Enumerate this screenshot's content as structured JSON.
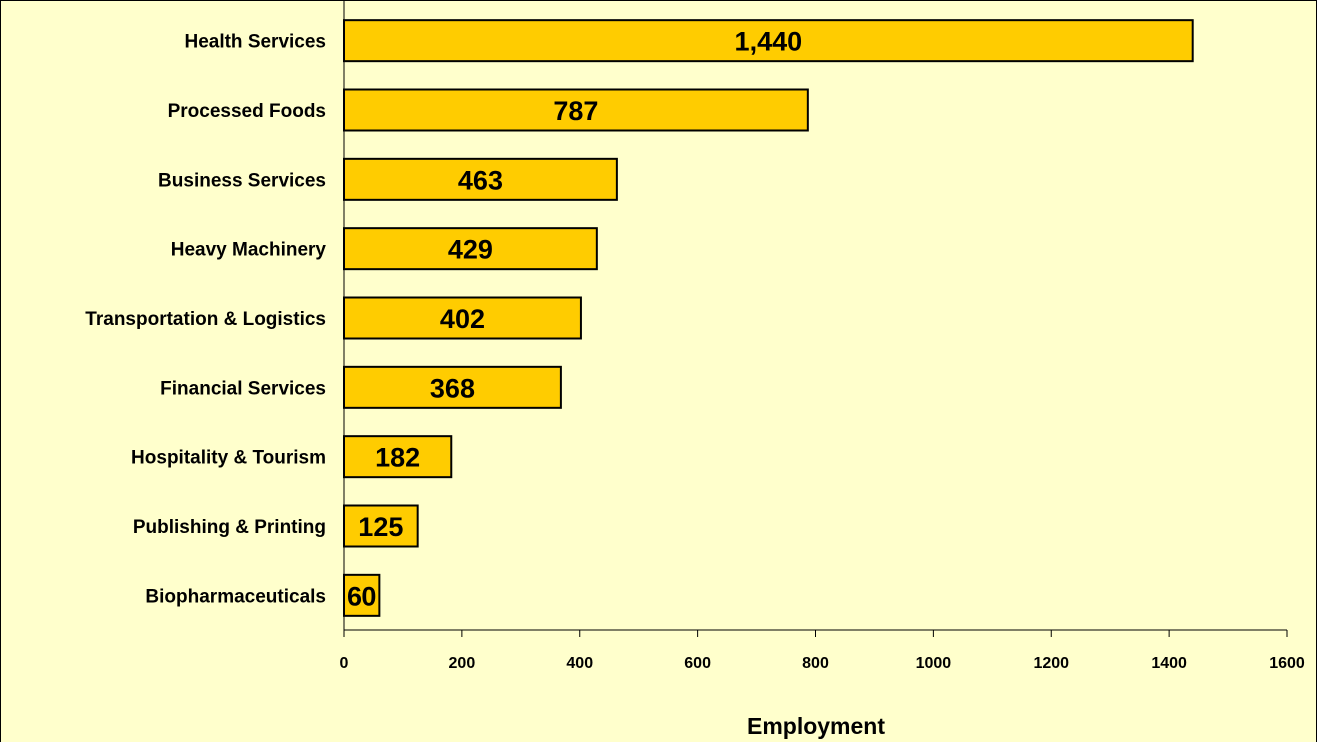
{
  "chart_data": {
    "type": "bar",
    "orientation": "horizontal",
    "categories": [
      "Health Services",
      "Processed Foods",
      "Business Services",
      "Heavy Machinery",
      "Transportation & Logistics",
      "Financial Services",
      "Hospitality & Tourism",
      "Publishing & Printing",
      "Biopharmaceuticals"
    ],
    "values": [
      1440,
      787,
      463,
      429,
      402,
      368,
      182,
      125,
      60
    ],
    "value_labels": [
      "1,440",
      "787",
      "463",
      "429",
      "402",
      "368",
      "182",
      "125",
      "60"
    ],
    "xlabel": "Employment",
    "ylabel": "",
    "xlim": [
      0,
      1600
    ],
    "xticks": [
      "0",
      "200",
      "400",
      "600",
      "800",
      "1000",
      "1200",
      "1400",
      "1600"
    ],
    "grid": false,
    "colors": {
      "bar": "#FFCC00",
      "background": "#FFFFCC",
      "outline": "#000000"
    }
  }
}
